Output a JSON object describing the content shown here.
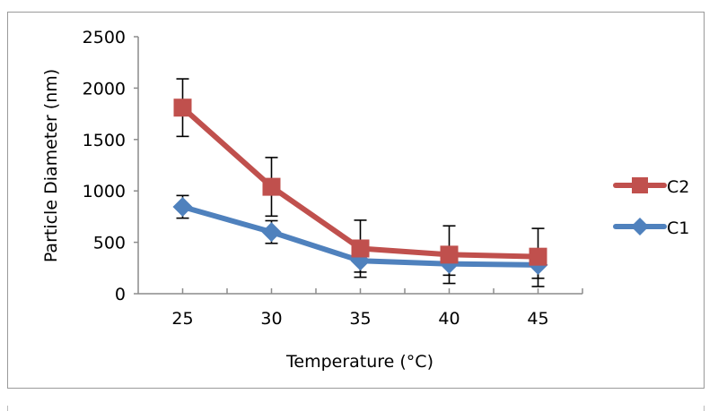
{
  "chart_data": {
    "type": "line",
    "title": "",
    "xlabel": "Temperature (°C)",
    "ylabel": "Particle Diameter (nm)",
    "categories": [
      "25",
      "30",
      "35",
      "40",
      "45"
    ],
    "ylim": [
      0,
      2500
    ],
    "yticks": [
      "0",
      "500",
      "1000",
      "1500",
      "2000",
      "2500"
    ],
    "grid": false,
    "legend_position": "right",
    "series": [
      {
        "name": "C2",
        "color": "#c0504d",
        "marker": "square",
        "values": [
          1810,
          1040,
          440,
          380,
          360
        ],
        "error_upper": [
          2090,
          1325,
          715,
          660,
          635
        ],
        "error_lower": [
          1530,
          755,
          160,
          100,
          70
        ]
      },
      {
        "name": "C1",
        "color": "#4f81bd",
        "marker": "diamond",
        "values": [
          845,
          600,
          320,
          290,
          280
        ],
        "error_upper": [
          955,
          710,
          430,
          400,
          390
        ],
        "error_lower": [
          735,
          490,
          210,
          180,
          150
        ]
      }
    ]
  }
}
